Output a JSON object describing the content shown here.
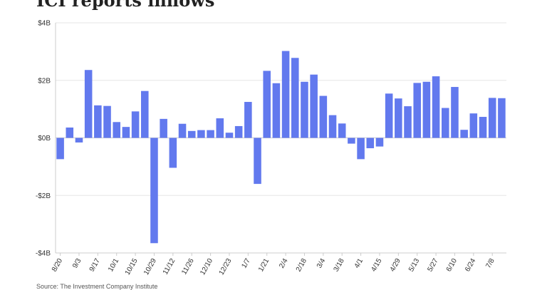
{
  "chart_data": {
    "type": "bar",
    "title": "ICI reports inflows",
    "xlabel": "",
    "ylabel": "",
    "ylim": [
      -4,
      4
    ],
    "yticks": [
      4,
      2,
      0,
      -2,
      -4
    ],
    "ytick_labels": [
      "$4B",
      "$2B",
      "$0B",
      "-$2B",
      "-$4B"
    ],
    "color": "#6279ee",
    "grid": "horizontal",
    "legend": "none",
    "x_ticks": [
      {
        "index": 0,
        "label": "8/20"
      },
      {
        "index": 2,
        "label": "9/3"
      },
      {
        "index": 4,
        "label": "9/17"
      },
      {
        "index": 6,
        "label": "10/1"
      },
      {
        "index": 8,
        "label": "10/15"
      },
      {
        "index": 10,
        "label": "10/29"
      },
      {
        "index": 12,
        "label": "11/12"
      },
      {
        "index": 14,
        "label": "11/26"
      },
      {
        "index": 16,
        "label": "12/10"
      },
      {
        "index": 18,
        "label": "12/23"
      },
      {
        "index": 20,
        "label": "1/7"
      },
      {
        "index": 22,
        "label": "1/21"
      },
      {
        "index": 24,
        "label": "2/4"
      },
      {
        "index": 26,
        "label": "2/18"
      },
      {
        "index": 28,
        "label": "3/4"
      },
      {
        "index": 30,
        "label": "3/18"
      },
      {
        "index": 32,
        "label": "4/1"
      },
      {
        "index": 34,
        "label": "4/15"
      },
      {
        "index": 36,
        "label": "4/29"
      },
      {
        "index": 38,
        "label": "5/13"
      },
      {
        "index": 40,
        "label": "5/27"
      },
      {
        "index": 42,
        "label": "6/10"
      },
      {
        "index": 44,
        "label": "6/24"
      },
      {
        "index": 46,
        "label": "7/8"
      }
    ],
    "values": [
      -0.74,
      0.36,
      -0.16,
      2.36,
      1.13,
      1.11,
      0.55,
      0.38,
      0.92,
      1.63,
      -3.66,
      0.66,
      -1.04,
      0.49,
      0.24,
      0.27,
      0.27,
      0.68,
      0.18,
      0.41,
      1.25,
      -1.6,
      2.33,
      1.9,
      3.02,
      2.78,
      1.95,
      2.2,
      1.46,
      0.79,
      0.5,
      -0.2,
      -0.74,
      -0.36,
      -0.3,
      1.54,
      1.37,
      1.1,
      1.91,
      1.95,
      2.14,
      1.04,
      1.77,
      0.28,
      0.85,
      0.73,
      1.39,
      1.38
    ]
  },
  "source": "Source: The Investment Company Institute"
}
